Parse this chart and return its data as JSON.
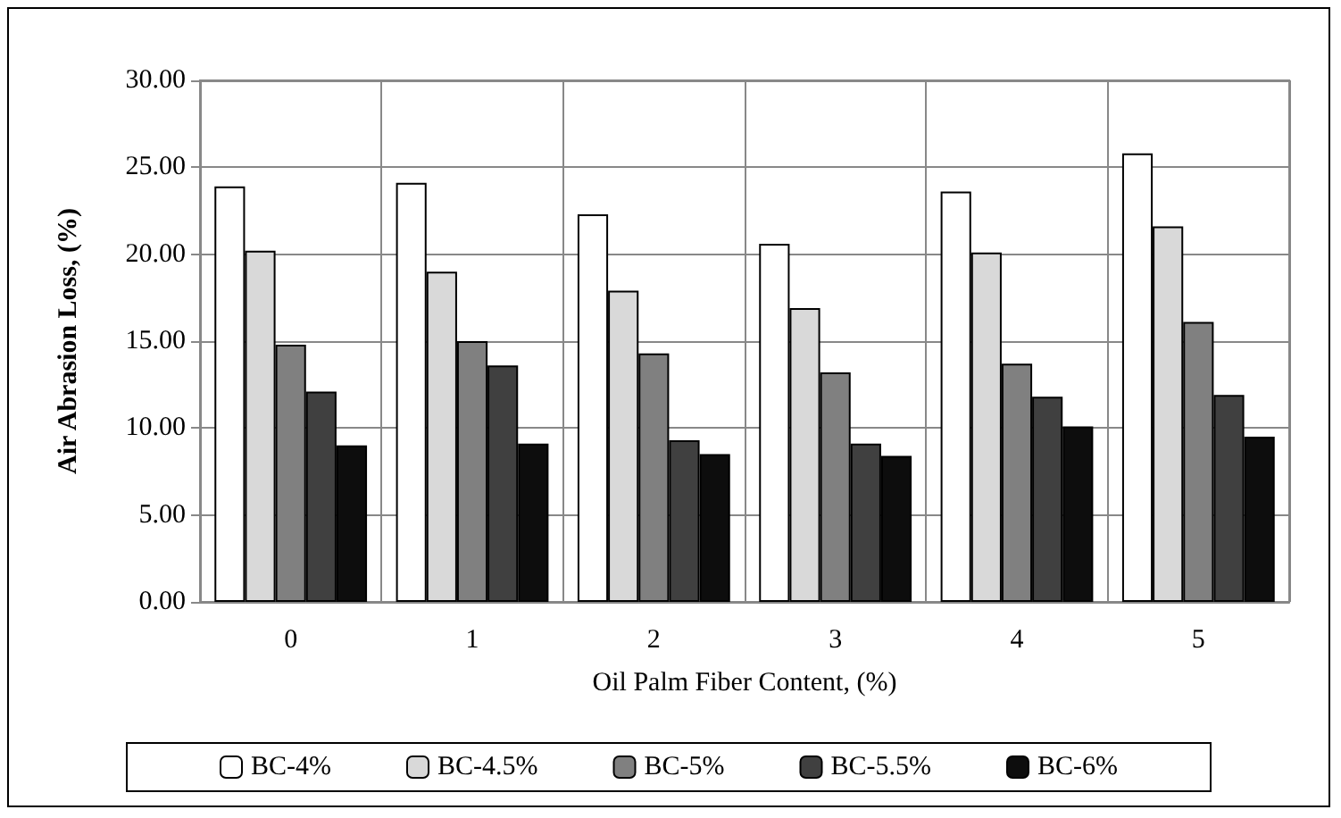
{
  "chart_data": {
    "type": "bar",
    "xlabel": "Oil Palm Fiber Content, (%)",
    "ylabel": "Air Abrasion Loss, (%)",
    "categories": [
      "0",
      "1",
      "2",
      "3",
      "4",
      "5"
    ],
    "series": [
      {
        "name": "BC-4%",
        "color": "#ffffff",
        "values": [
          23.9,
          24.1,
          22.3,
          20.6,
          23.6,
          25.8
        ]
      },
      {
        "name": "BC-4.5%",
        "color": "#d9d9d9",
        "values": [
          20.2,
          19.0,
          17.9,
          16.9,
          20.1,
          21.6
        ]
      },
      {
        "name": "BC-5%",
        "color": "#808080",
        "values": [
          14.8,
          15.0,
          14.3,
          13.2,
          13.7,
          16.1
        ]
      },
      {
        "name": "BC-5.5%",
        "color": "#404040",
        "values": [
          12.1,
          13.6,
          9.3,
          9.1,
          11.8,
          11.9
        ]
      },
      {
        "name": "BC-6%",
        "color": "#0d0d0d",
        "values": [
          9.0,
          9.1,
          8.5,
          8.4,
          10.1,
          9.5
        ]
      }
    ],
    "ylim": [
      0,
      30
    ],
    "yticks": [
      {
        "value": 0,
        "label": "0.00"
      },
      {
        "value": 5,
        "label": "5.00"
      },
      {
        "value": 10,
        "label": "10.00"
      },
      {
        "value": 15,
        "label": "15.00"
      },
      {
        "value": 20,
        "label": "20.00"
      },
      {
        "value": 25,
        "label": "25.00"
      },
      {
        "value": 30,
        "label": "30.00"
      }
    ],
    "grid": true,
    "legend": "bottom"
  }
}
